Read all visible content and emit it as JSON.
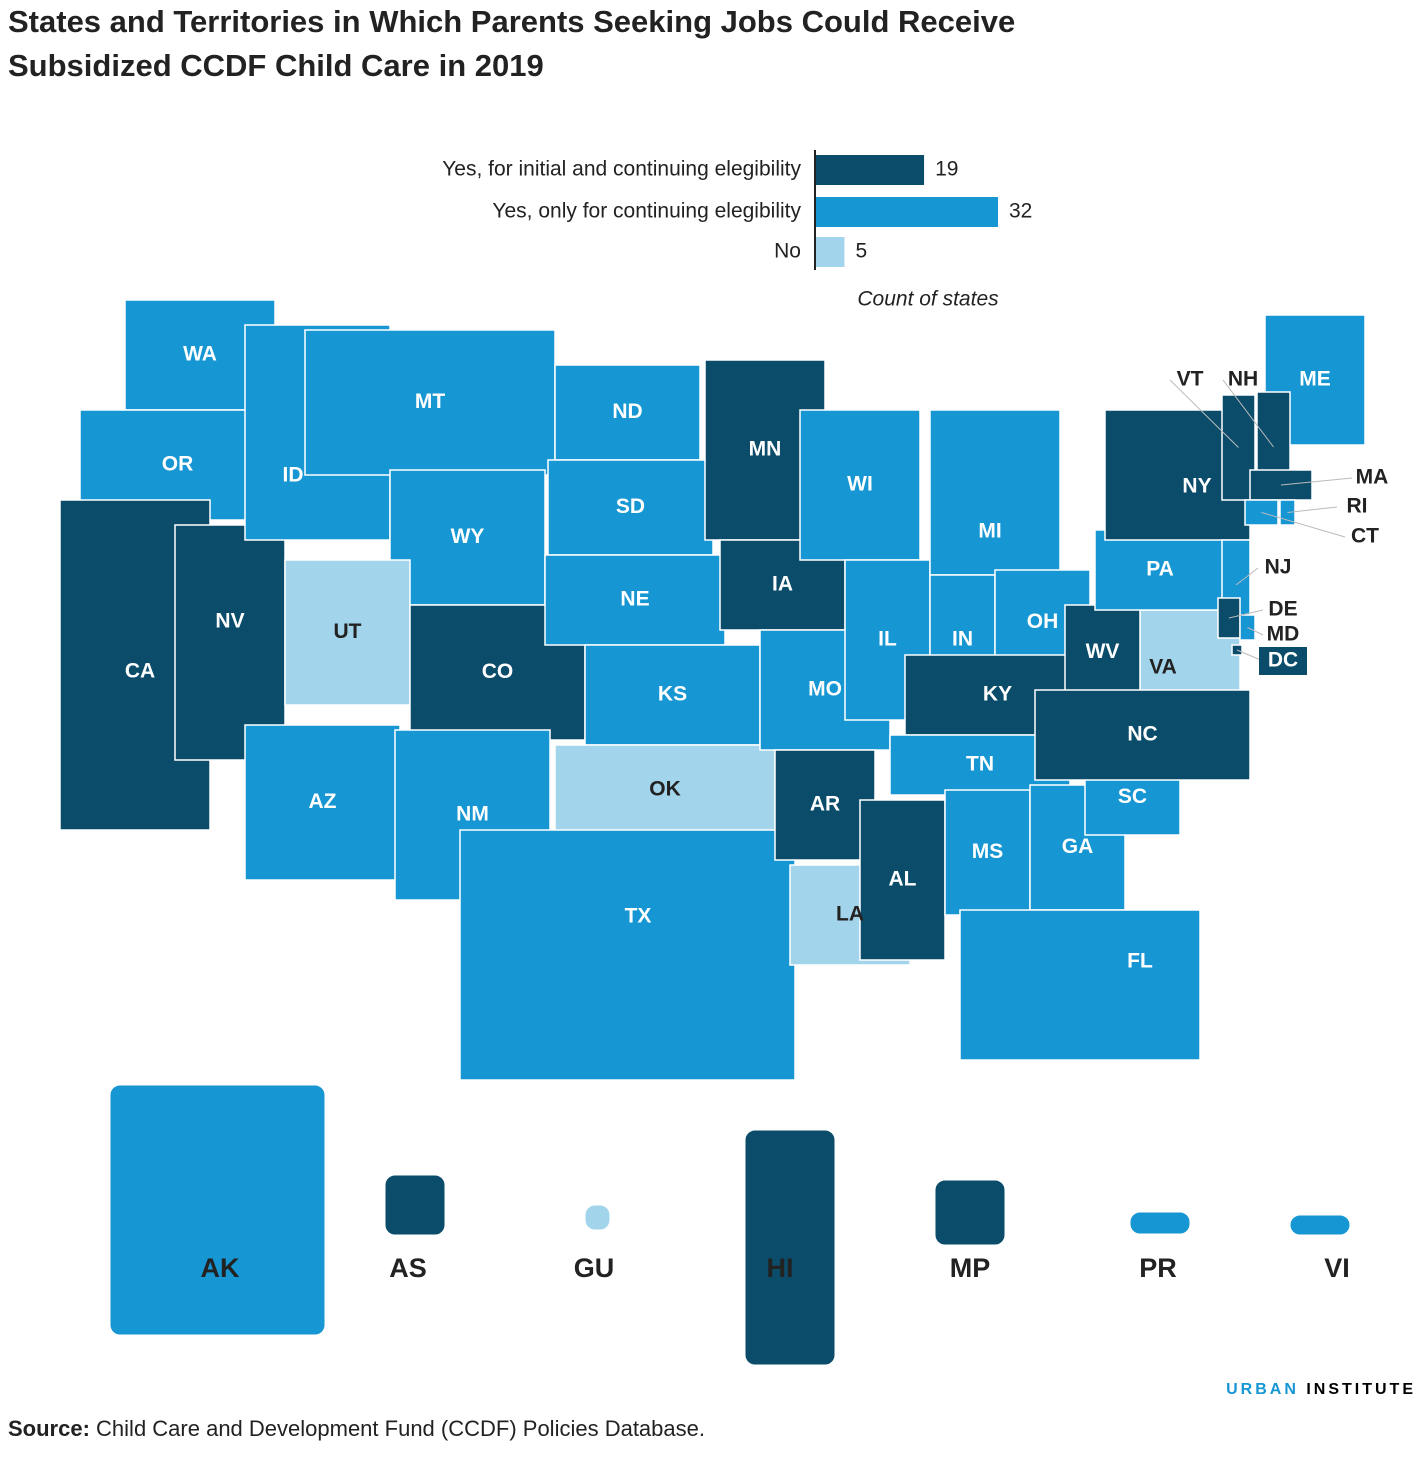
{
  "chart_data": {
    "type": "bar",
    "title": "States and Territories in Which Parents Seeking Jobs Could Receive",
    "title_line2": "Subsidized CCDF Child Care in 2019",
    "categories": [
      "Yes, for initial and continuing elegibility",
      "Yes, only for continuing elegibility",
      "No"
    ],
    "values": [
      19,
      32,
      5
    ],
    "colors": [
      "#0a4c6a",
      "#1696d2",
      "#a2d4ec"
    ],
    "xlabel": "Count of states"
  },
  "map": {
    "states": [
      {
        "label": "WA",
        "category": 1
      },
      {
        "label": "OR",
        "category": 1
      },
      {
        "label": "CA",
        "category": 0
      },
      {
        "label": "NV",
        "category": 0
      },
      {
        "label": "ID",
        "category": 1
      },
      {
        "label": "MT",
        "category": 1
      },
      {
        "label": "WY",
        "category": 1
      },
      {
        "label": "UT",
        "category": 2
      },
      {
        "label": "CO",
        "category": 0
      },
      {
        "label": "AZ",
        "category": 1
      },
      {
        "label": "NM",
        "category": 1
      },
      {
        "label": "ND",
        "category": 1
      },
      {
        "label": "SD",
        "category": 1
      },
      {
        "label": "NE",
        "category": 1
      },
      {
        "label": "KS",
        "category": 1
      },
      {
        "label": "OK",
        "category": 2
      },
      {
        "label": "TX",
        "category": 1
      },
      {
        "label": "MN",
        "category": 0
      },
      {
        "label": "IA",
        "category": 0
      },
      {
        "label": "MO",
        "category": 1
      },
      {
        "label": "AR",
        "category": 0
      },
      {
        "label": "LA",
        "category": 2
      },
      {
        "label": "WI",
        "category": 1
      },
      {
        "label": "IL",
        "category": 1
      },
      {
        "label": "MI",
        "category": 1
      },
      {
        "label": "IN",
        "category": 1
      },
      {
        "label": "OH",
        "category": 1
      },
      {
        "label": "KY",
        "category": 0
      },
      {
        "label": "TN",
        "category": 1
      },
      {
        "label": "AL",
        "category": 0
      },
      {
        "label": "MS",
        "category": 1
      },
      {
        "label": "GA",
        "category": 1
      },
      {
        "label": "SC",
        "category": 1
      },
      {
        "label": "FL",
        "category": 1
      },
      {
        "label": "VA",
        "category": 2
      },
      {
        "label": "WV",
        "category": 0
      },
      {
        "label": "NC",
        "category": 0
      },
      {
        "label": "PA",
        "category": 1
      },
      {
        "label": "NY",
        "category": 0
      },
      {
        "label": "NJ",
        "category": 1
      },
      {
        "label": "DE",
        "category": 0
      },
      {
        "label": "MD",
        "category": 1
      },
      {
        "label": "DC",
        "category": 0
      },
      {
        "label": "ME",
        "category": 1
      },
      {
        "label": "VT",
        "category": 0
      },
      {
        "label": "NH",
        "category": 0
      },
      {
        "label": "MA",
        "category": 0
      },
      {
        "label": "CT",
        "category": 1
      },
      {
        "label": "RI",
        "category": 1
      }
    ],
    "territories": [
      {
        "label": "AK",
        "category": 1
      },
      {
        "label": "AS",
        "category": 0
      },
      {
        "label": "GU",
        "category": 2
      },
      {
        "label": "HI",
        "category": 0
      },
      {
        "label": "MP",
        "category": 0
      },
      {
        "label": "PR",
        "category": 1
      },
      {
        "label": "VI",
        "category": 1
      }
    ]
  },
  "source_label": "Source:",
  "source_text": "Child Care and Development Fund (CCDF) Policies Database.",
  "logo_a": "URBAN",
  "logo_b": "INSTITUTE"
}
